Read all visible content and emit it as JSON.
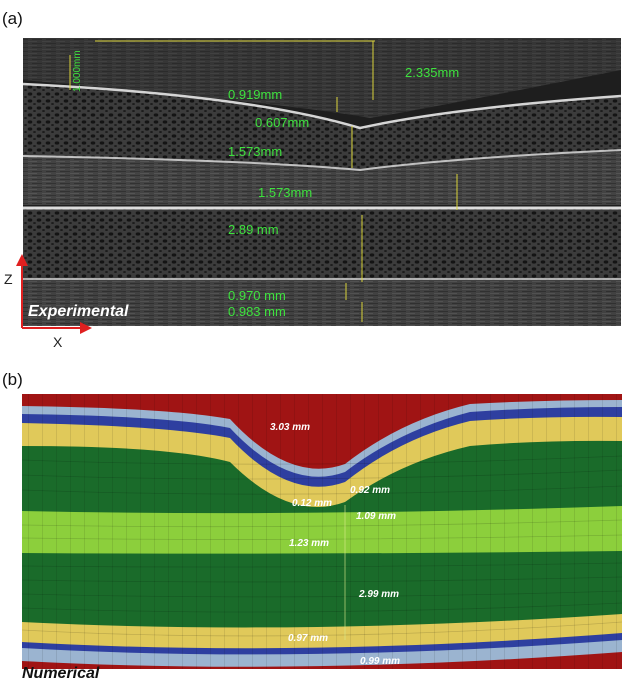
{
  "panel_a": {
    "label": "(a)",
    "tag": "Experimental",
    "axis_z": "Z",
    "axis_x": "X",
    "scale_text": "1.000mm",
    "measurements": [
      "2.335mm",
      "0.919mm",
      "0.607mm",
      "1.573mm",
      "1.573mm",
      "2.89 mm",
      "0.970 mm",
      "0.983 mm"
    ]
  },
  "panel_b": {
    "label": "(b)",
    "tag": "Numerical",
    "measurements": [
      "3.03 mm",
      "0.12 mm",
      "0.92 mm",
      "1.09 mm",
      "1.23 mm",
      "2.99 mm",
      "0.97 mm",
      "0.99 mm"
    ]
  },
  "colors": {
    "green_label": "#3ee23e",
    "layer_red": "#b51a1a",
    "layer_dark_green": "#1a6b2a",
    "layer_light_green": "#8ccf3c",
    "layer_yellow": "#e0c95a",
    "layer_blue": "#2e3fa0",
    "layer_lightblue": "#9bb4d0"
  }
}
